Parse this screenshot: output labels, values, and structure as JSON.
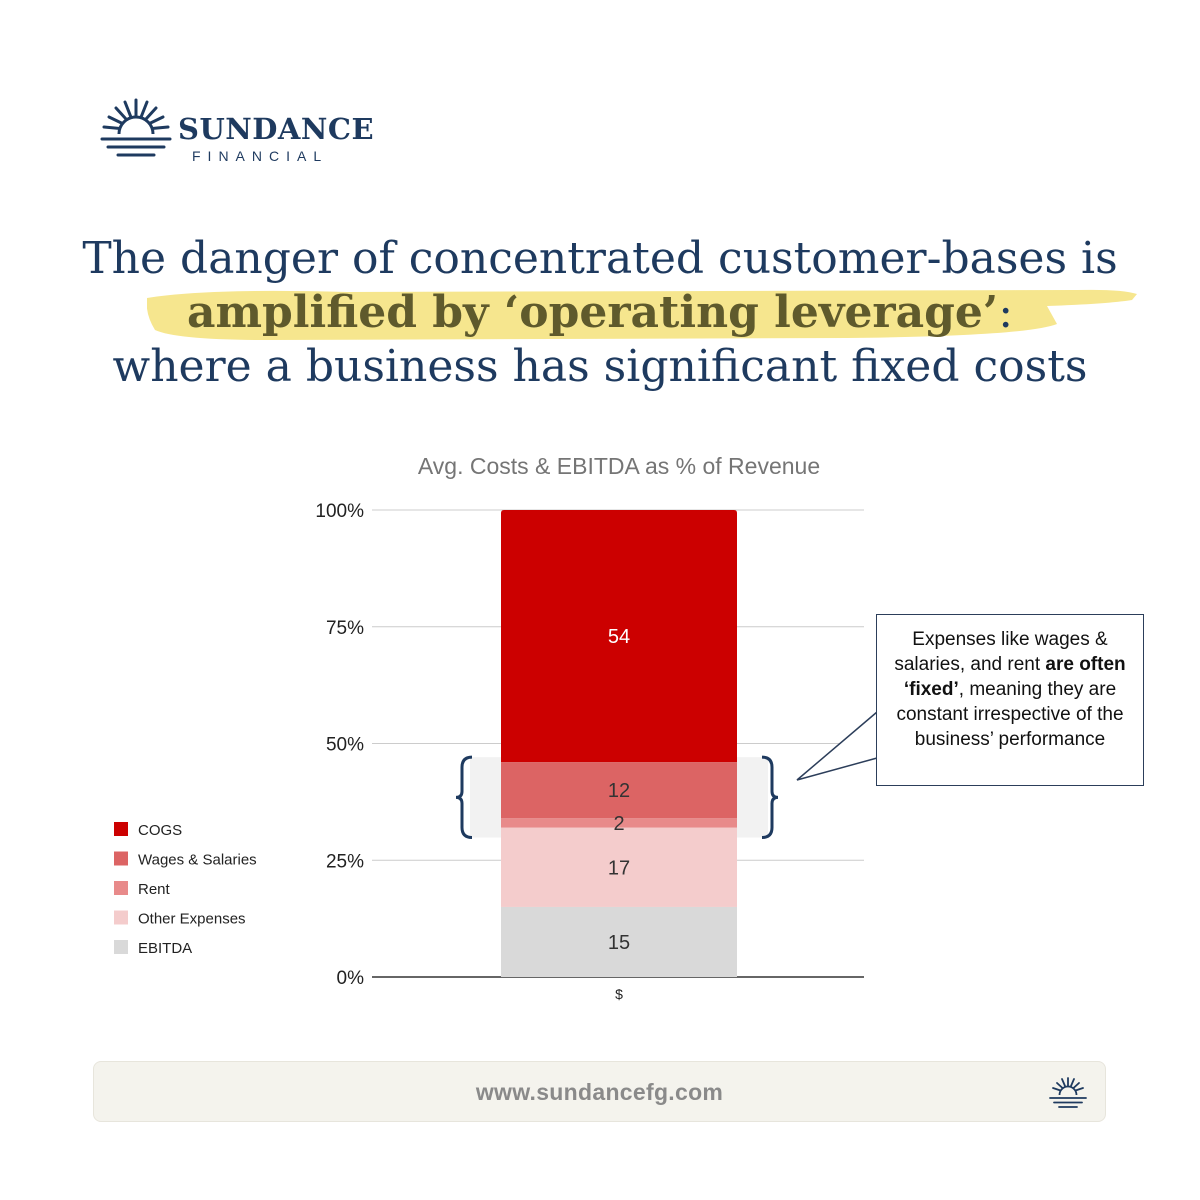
{
  "brand": {
    "name_top": "SUNDANCE",
    "name_bottom": "FINANCIAL",
    "logo_icon": "sunrise-icon",
    "color": "#1e3a5f"
  },
  "headline": {
    "line1": "The danger of concentrated customer-bases is",
    "line2_highlight": "amplified by ‘operating leverage’",
    "line2_tail": ":",
    "line3": "where a business has significant fixed costs",
    "highlight_color": "#f5e27a"
  },
  "callout": {
    "before": "Expenses like wages & salaries, and rent ",
    "bold": "are often ‘fixed’",
    "after": ", meaning they are constant irrespective of the business’ performance"
  },
  "footer": {
    "url": "www.sundancefg.com",
    "icon": "sunrise-icon"
  },
  "chart_data": {
    "type": "bar",
    "stacked": true,
    "title": "Avg. Costs & EBITDA as % of Revenue",
    "categories": [
      "$"
    ],
    "series": [
      {
        "name": "EBITDA",
        "values": [
          15
        ],
        "color": "#d9d9d9"
      },
      {
        "name": "Other Expenses",
        "values": [
          17
        ],
        "color": "#f4cccc"
      },
      {
        "name": "Rent",
        "values": [
          2
        ],
        "color": "#e88a8a"
      },
      {
        "name": "Wages & Salaries",
        "values": [
          12
        ],
        "color": "#dc6464"
      },
      {
        "name": "COGS",
        "values": [
          54
        ],
        "color": "#cc0000"
      }
    ],
    "legend_order": [
      "COGS",
      "Wages & Salaries",
      "Rent",
      "Other Expenses",
      "EBITDA"
    ],
    "legend_position": "left",
    "yticks": [
      "0%",
      "25%",
      "50%",
      "75%",
      "100%"
    ],
    "ylim": [
      0,
      100
    ],
    "grid": true,
    "fixed_cost_bracket": [
      "Wages & Salaries",
      "Rent"
    ]
  }
}
